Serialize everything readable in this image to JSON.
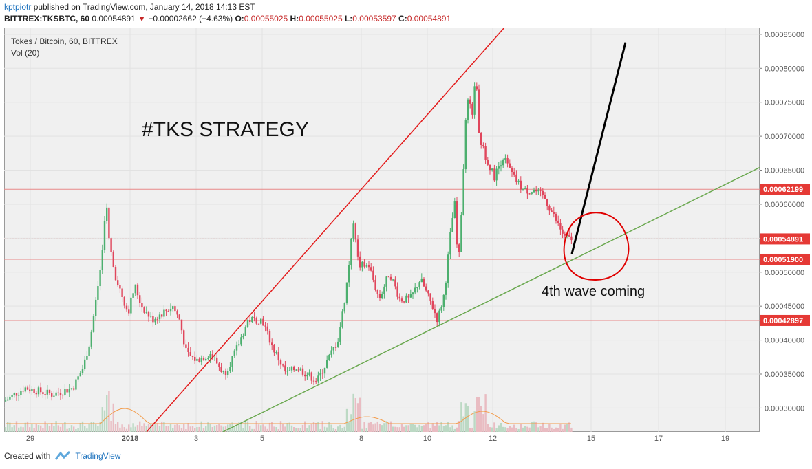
{
  "header": {
    "user": "kptpiotr",
    "published": "published on TradingView.com, January 14, 2018 14:13 EST",
    "symbol": "BITTREX:TKSBTC, 60",
    "last": "0.00054891",
    "change_arrow": "▼",
    "change": "−0.00002662 (−4.63%)",
    "o_label": "O:",
    "o": "0.00055025",
    "h_label": "H:",
    "h": "0.00055025",
    "l_label": "L:",
    "l": "0.00053597",
    "c_label": "C:",
    "c": "0.00054891"
  },
  "chart_title": "Tokes / Bitcoin, 60, BITTREX",
  "vol_title": "Vol (20)",
  "footer": {
    "created_with": "Created with",
    "brand": "TradingView"
  },
  "colors": {
    "up": "#4caf6e",
    "down": "#e0465c",
    "trend_red": "#e31b1b",
    "trend_green": "#6aa84f",
    "hline": "#e88888",
    "label_bg": "#e53935"
  },
  "chart_data": {
    "type": "candlestick",
    "title": "Tokes / Bitcoin, 60, BITTREX",
    "annotation_title": "#TKS STRATEGY",
    "annotation_note": "4th wave coming",
    "x_ticks": [
      "29",
      "2018",
      "3",
      "5",
      "8",
      "10",
      "12",
      "15",
      "17",
      "19"
    ],
    "y_ticks": [
      "0.00085000",
      "0.00080000",
      "0.00075000",
      "0.00070000",
      "0.00065000",
      "0.00060000",
      "0.00055000",
      "0.00050000",
      "0.00045000",
      "0.00040000",
      "0.00035000",
      "0.00030000"
    ],
    "ylim": [
      0.000265,
      0.00086
    ],
    "price_lines": [
      {
        "label": "0.00062199",
        "value": 0.00062199
      },
      {
        "label": "0.00054891",
        "value": 0.00054891,
        "current": true
      },
      {
        "label": "0.00051900",
        "value": 0.000519
      },
      {
        "label": "0.00042897",
        "value": 0.00042897
      }
    ],
    "price_path": [
      [
        0,
        0.00031
      ],
      [
        30,
        0.00033
      ],
      [
        70,
        0.00032
      ],
      [
        100,
        0.00033
      ],
      [
        115,
        0.00036
      ],
      [
        125,
        0.0004
      ],
      [
        135,
        0.00047
      ],
      [
        142,
        0.00052
      ],
      [
        148,
        0.00061
      ],
      [
        152,
        0.00055
      ],
      [
        160,
        0.0005
      ],
      [
        170,
        0.00047
      ],
      [
        180,
        0.00044
      ],
      [
        190,
        0.00048
      ],
      [
        200,
        0.00045
      ],
      [
        215,
        0.00043
      ],
      [
        230,
        0.00044
      ],
      [
        245,
        0.00045
      ],
      [
        255,
        0.00043
      ],
      [
        265,
        0.00038
      ],
      [
        280,
        0.00037
      ],
      [
        300,
        0.00038
      ],
      [
        320,
        0.00035
      ],
      [
        335,
        0.00038
      ],
      [
        355,
        0.00043
      ],
      [
        375,
        0.00043
      ],
      [
        390,
        0.00039
      ],
      [
        410,
        0.00035
      ],
      [
        425,
        0.00036
      ],
      [
        440,
        0.00035
      ],
      [
        455,
        0.00034
      ],
      [
        470,
        0.00037
      ],
      [
        485,
        0.0004
      ],
      [
        495,
        0.00046
      ],
      [
        500,
        0.0005
      ],
      [
        508,
        0.00058
      ],
      [
        515,
        0.00051
      ],
      [
        530,
        0.00051
      ],
      [
        545,
        0.00046
      ],
      [
        560,
        0.0005
      ],
      [
        575,
        0.00046
      ],
      [
        590,
        0.00046
      ],
      [
        605,
        0.00049
      ],
      [
        618,
        0.00046
      ],
      [
        630,
        0.00043
      ],
      [
        640,
        0.00047
      ],
      [
        650,
        0.00057
      ],
      [
        655,
        0.0006
      ],
      [
        660,
        0.0005
      ],
      [
        665,
        0.0006
      ],
      [
        670,
        0.00071
      ],
      [
        675,
        0.00076
      ],
      [
        680,
        0.00072
      ],
      [
        685,
        0.0008
      ],
      [
        690,
        0.0007
      ],
      [
        700,
        0.00067
      ],
      [
        712,
        0.00064
      ],
      [
        725,
        0.00067
      ],
      [
        740,
        0.00064
      ],
      [
        755,
        0.00062
      ],
      [
        770,
        0.00062
      ],
      [
        785,
        0.00061
      ],
      [
        800,
        0.00058
      ],
      [
        815,
        0.00055
      ],
      [
        825,
        0.00054891
      ]
    ],
    "trendlines": [
      {
        "name": "red",
        "from": [
          207,
          0.000265
        ],
        "to": [
          727,
          0.00086
        ]
      },
      {
        "name": "green",
        "from": [
          318,
          0.000265
        ],
        "to": [
          1098,
          0.000654
        ]
      },
      {
        "name": "black",
        "from": [
          825,
          0.000527
        ],
        "to": [
          903,
          0.000838
        ]
      }
    ]
  }
}
